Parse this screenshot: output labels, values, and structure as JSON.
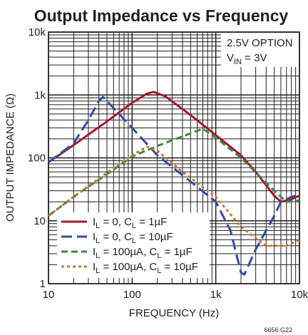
{
  "chart_data": {
    "type": "line",
    "title": "Output Impedance vs Frequency",
    "xlabel": "FREQUENCY (Hz)",
    "ylabel": "OUTPUT IMPEDANCE (Ω)",
    "x_scale": "log",
    "y_scale": "log",
    "xlim": [
      10,
      10000
    ],
    "ylim": [
      1,
      10000
    ],
    "grid": true,
    "x_ticks": [
      {
        "value": 10,
        "label": "10"
      },
      {
        "value": 100,
        "label": "100"
      },
      {
        "value": 1000,
        "label": "1k"
      },
      {
        "value": 10000,
        "label": "10k"
      }
    ],
    "y_ticks": [
      {
        "value": 1,
        "label": "1"
      },
      {
        "value": 10,
        "label": "10"
      },
      {
        "value": 100,
        "label": "100"
      },
      {
        "value": 1000,
        "label": "1k"
      },
      {
        "value": 10000,
        "label": "10k"
      }
    ],
    "annotation": {
      "line1": "2.5V OPTION",
      "line2_main": "V",
      "line2_sub": "IN",
      "line2_rest": " = 3V"
    },
    "footnote": "6656 G22",
    "legend_position": "bottom-left",
    "series": [
      {
        "legend": {
          "a": "I",
          "a_sub": "L",
          "b": " = 0, C",
          "b_sub": "L",
          "c": " = 1µF"
        },
        "color": "#a6192e",
        "dash": "solid",
        "points": [
          [
            10,
            85
          ],
          [
            20,
            160
          ],
          [
            50,
            380
          ],
          [
            100,
            750
          ],
          [
            150,
            1050
          ],
          [
            180,
            1120
          ],
          [
            250,
            950
          ],
          [
            500,
            480
          ],
          [
            1000,
            230
          ],
          [
            2000,
            110
          ],
          [
            3000,
            60
          ],
          [
            5000,
            25
          ],
          [
            6000,
            20
          ],
          [
            8000,
            22
          ],
          [
            10000,
            25
          ]
        ]
      },
      {
        "legend": {
          "a": "I",
          "a_sub": "L",
          "b": " = 0, C",
          "b_sub": "L",
          "c": " = 10µF"
        },
        "color": "#2e4fa3",
        "dash": "long",
        "points": [
          [
            10,
            85
          ],
          [
            20,
            170
          ],
          [
            30,
            400
          ],
          [
            40,
            800
          ],
          [
            45,
            930
          ],
          [
            60,
            620
          ],
          [
            100,
            300
          ],
          [
            200,
            110
          ],
          [
            500,
            42
          ],
          [
            1000,
            20
          ],
          [
            1500,
            7
          ],
          [
            2000,
            1.5
          ],
          [
            2200,
            1.4
          ],
          [
            3000,
            3.5
          ],
          [
            5000,
            12
          ],
          [
            6000,
            20
          ],
          [
            8000,
            24
          ],
          [
            10000,
            26
          ]
        ]
      },
      {
        "legend": {
          "a": "I",
          "a_sub": "L",
          "b": " = 100µA, C",
          "b_sub": "L",
          "c": " = 1µF"
        },
        "color": "#3a8a45",
        "dash": "medium",
        "points": [
          [
            10,
            12
          ],
          [
            20,
            24
          ],
          [
            50,
            55
          ],
          [
            100,
            105
          ],
          [
            200,
            155
          ],
          [
            400,
            220
          ],
          [
            700,
            290
          ],
          [
            1000,
            210
          ],
          [
            2000,
            100
          ],
          [
            5000,
            30
          ],
          [
            7000,
            20
          ],
          [
            10000,
            21
          ]
        ]
      },
      {
        "legend": {
          "a": "I",
          "a_sub": "L",
          "b": " = 100µA, C",
          "b_sub": "L",
          "c": " = 10µF"
        },
        "color": "#c8782c",
        "dash": "short",
        "points": [
          [
            10,
            12
          ],
          [
            20,
            24
          ],
          [
            50,
            58
          ],
          [
            100,
            110
          ],
          [
            150,
            150
          ],
          [
            200,
            130
          ],
          [
            400,
            60
          ],
          [
            1000,
            24
          ],
          [
            2000,
            8
          ],
          [
            4000,
            4
          ],
          [
            7000,
            4
          ],
          [
            10000,
            5
          ]
        ]
      }
    ]
  }
}
